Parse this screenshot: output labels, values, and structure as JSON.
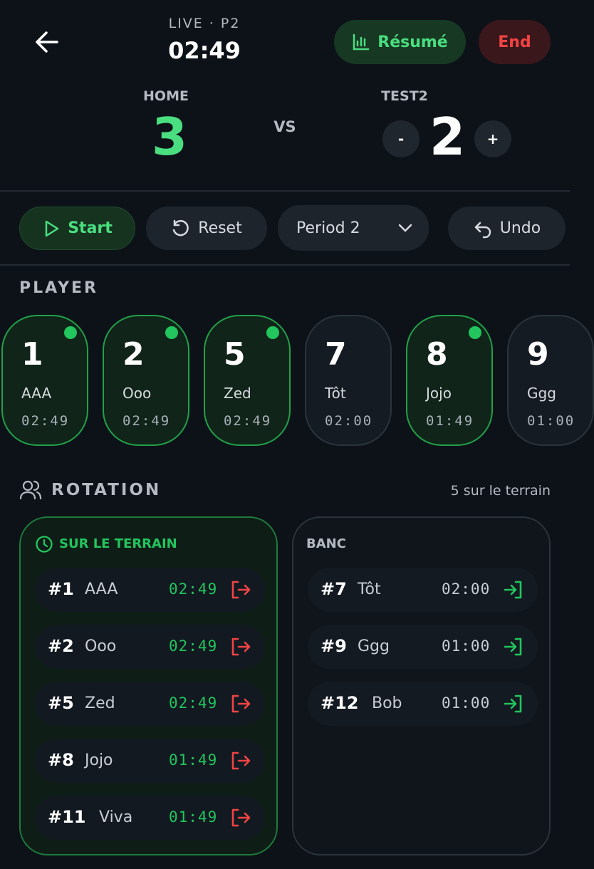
{
  "header": {
    "status": "LIVE · P2",
    "clock": "02:49",
    "summary_button": "Résumé",
    "end_button": "End"
  },
  "score": {
    "home_name": "HOME",
    "home_score": "3",
    "vs": "VS",
    "away_name": "TEST2",
    "away_score": "2",
    "minus": "-",
    "plus": "+"
  },
  "controls": {
    "start": "Start",
    "reset": "Reset",
    "period": "Period 2",
    "undo": "Undo"
  },
  "players": {
    "title": "PLAYER",
    "items": [
      {
        "number": "1",
        "name": "AAA",
        "time": "02:49",
        "active": true
      },
      {
        "number": "2",
        "name": "Ooo",
        "time": "02:49",
        "active": true
      },
      {
        "number": "5",
        "name": "Zed",
        "time": "02:49",
        "active": true
      },
      {
        "number": "7",
        "name": "Tôt",
        "time": "02:00",
        "active": false
      },
      {
        "number": "8",
        "name": "Jojo",
        "time": "01:49",
        "active": true
      },
      {
        "number": "9",
        "name": "Ggg",
        "time": "01:00",
        "active": false
      }
    ]
  },
  "rotation": {
    "title": "ROTATION",
    "count": "5 sur le terrain",
    "on_field": {
      "title": "SUR LE TERRAIN",
      "rows": [
        {
          "number": "#1",
          "name": "AAA",
          "time": "02:49"
        },
        {
          "number": "#2",
          "name": "Ooo",
          "time": "02:49"
        },
        {
          "number": "#5",
          "name": "Zed",
          "time": "02:49"
        },
        {
          "number": "#8",
          "name": "Jojo",
          "time": "01:49"
        },
        {
          "number": "#11",
          "name": "Viva",
          "time": "01:49"
        }
      ]
    },
    "bench": {
      "title": "BANC",
      "rows": [
        {
          "number": "#7",
          "name": "Tôt",
          "time": "02:00"
        },
        {
          "number": "#9",
          "name": "Ggg",
          "time": "01:00"
        },
        {
          "number": "#12",
          "name": "Bob",
          "time": "01:00"
        }
      ]
    }
  }
}
